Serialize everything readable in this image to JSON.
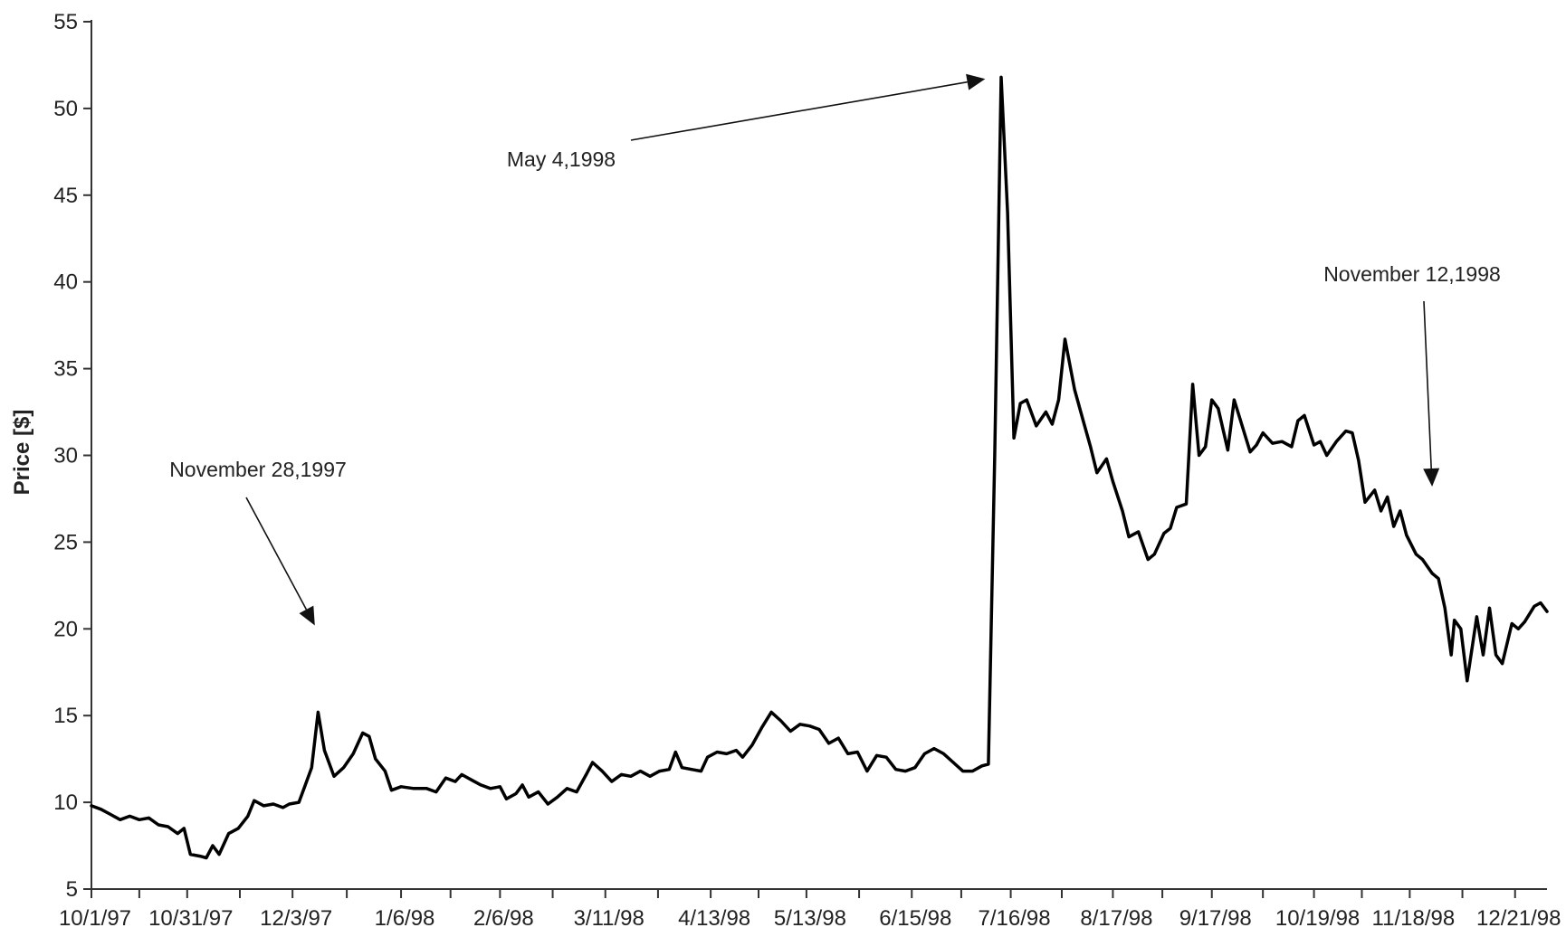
{
  "chart_data": {
    "type": "line",
    "ylabel": "Price [$]",
    "xlabel": "",
    "ylim": [
      5,
      55
    ],
    "yticks": [
      5,
      10,
      15,
      20,
      25,
      30,
      35,
      40,
      45,
      50,
      55
    ],
    "xlim": [
      "1997-10-01",
      "1998-12-31"
    ],
    "xtick_labels": [
      {
        "label": "10/1/97",
        "date": "1997-10-01"
      },
      {
        "label": "10/31/97",
        "date": "1997-10-31"
      },
      {
        "label": "12/3/97",
        "date": "1997-12-03"
      },
      {
        "label": "1/6/98",
        "date": "1998-01-06"
      },
      {
        "label": "2/6/98",
        "date": "1998-02-06"
      },
      {
        "label": "3/11/98",
        "date": "1998-03-11"
      },
      {
        "label": "4/13/98",
        "date": "1998-04-13"
      },
      {
        "label": "5/13/98",
        "date": "1998-05-13"
      },
      {
        "label": "6/15/98",
        "date": "1998-06-15"
      },
      {
        "label": "7/16/98",
        "date": "1998-07-16"
      },
      {
        "label": "8/17/98",
        "date": "1998-08-17"
      },
      {
        "label": "9/17/98",
        "date": "1998-09-17"
      },
      {
        "label": "10/19/98",
        "date": "1998-10-19"
      },
      {
        "label": "11/18/98",
        "date": "1998-11-18"
      },
      {
        "label": "12/21/98",
        "date": "1998-12-21"
      }
    ],
    "grid": false,
    "line_color": "#000000",
    "series": [
      {
        "points": [
          [
            "1997-10-01",
            9.8
          ],
          [
            "1997-10-04",
            9.6
          ],
          [
            "1997-10-07",
            9.3
          ],
          [
            "1997-10-10",
            9.0
          ],
          [
            "1997-10-13",
            9.2
          ],
          [
            "1997-10-16",
            9.0
          ],
          [
            "1997-10-19",
            9.1
          ],
          [
            "1997-10-22",
            8.7
          ],
          [
            "1997-10-25",
            8.6
          ],
          [
            "1997-10-28",
            8.2
          ],
          [
            "1997-10-30",
            8.5
          ],
          [
            "1997-11-01",
            7.0
          ],
          [
            "1997-11-04",
            6.9
          ],
          [
            "1997-11-06",
            6.8
          ],
          [
            "1997-11-08",
            7.5
          ],
          [
            "1997-11-10",
            7.0
          ],
          [
            "1997-11-13",
            8.2
          ],
          [
            "1997-11-16",
            8.5
          ],
          [
            "1997-11-19",
            9.2
          ],
          [
            "1997-11-21",
            10.1
          ],
          [
            "1997-11-24",
            9.8
          ],
          [
            "1997-11-27",
            9.9
          ],
          [
            "1997-11-30",
            9.7
          ],
          [
            "1997-12-02",
            9.9
          ],
          [
            "1997-12-05",
            10.0
          ],
          [
            "1997-12-07",
            11.0
          ],
          [
            "1997-12-09",
            12.0
          ],
          [
            "1997-12-11",
            15.2
          ],
          [
            "1997-12-13",
            13.0
          ],
          [
            "1997-12-16",
            11.5
          ],
          [
            "1997-12-19",
            12.0
          ],
          [
            "1997-12-22",
            12.8
          ],
          [
            "1997-12-25",
            14.0
          ],
          [
            "1997-12-27",
            13.8
          ],
          [
            "1997-12-29",
            12.5
          ],
          [
            "1998-01-01",
            11.8
          ],
          [
            "1998-01-03",
            10.7
          ],
          [
            "1998-01-06",
            10.9
          ],
          [
            "1998-01-10",
            10.8
          ],
          [
            "1998-01-14",
            10.8
          ],
          [
            "1998-01-17",
            10.6
          ],
          [
            "1998-01-20",
            11.4
          ],
          [
            "1998-01-23",
            11.2
          ],
          [
            "1998-01-25",
            11.6
          ],
          [
            "1998-01-28",
            11.3
          ],
          [
            "1998-01-31",
            11.0
          ],
          [
            "1998-02-03",
            10.8
          ],
          [
            "1998-02-06",
            10.9
          ],
          [
            "1998-02-08",
            10.2
          ],
          [
            "1998-02-11",
            10.5
          ],
          [
            "1998-02-13",
            11.0
          ],
          [
            "1998-02-15",
            10.3
          ],
          [
            "1998-02-18",
            10.6
          ],
          [
            "1998-02-21",
            9.9
          ],
          [
            "1998-02-24",
            10.3
          ],
          [
            "1998-02-27",
            10.8
          ],
          [
            "1998-03-02",
            10.6
          ],
          [
            "1998-03-05",
            11.6
          ],
          [
            "1998-03-07",
            12.3
          ],
          [
            "1998-03-10",
            11.8
          ],
          [
            "1998-03-13",
            11.2
          ],
          [
            "1998-03-16",
            11.6
          ],
          [
            "1998-03-19",
            11.5
          ],
          [
            "1998-03-22",
            11.8
          ],
          [
            "1998-03-25",
            11.5
          ],
          [
            "1998-03-28",
            11.8
          ],
          [
            "1998-03-31",
            11.9
          ],
          [
            "1998-04-02",
            12.9
          ],
          [
            "1998-04-04",
            12.0
          ],
          [
            "1998-04-07",
            11.9
          ],
          [
            "1998-04-10",
            11.8
          ],
          [
            "1998-04-12",
            12.6
          ],
          [
            "1998-04-15",
            12.9
          ],
          [
            "1998-04-18",
            12.8
          ],
          [
            "1998-04-21",
            13.0
          ],
          [
            "1998-04-23",
            12.6
          ],
          [
            "1998-04-26",
            13.3
          ],
          [
            "1998-04-29",
            14.3
          ],
          [
            "1998-05-02",
            15.2
          ],
          [
            "1998-05-05",
            14.7
          ],
          [
            "1998-05-08",
            14.1
          ],
          [
            "1998-05-11",
            14.5
          ],
          [
            "1998-05-14",
            14.4
          ],
          [
            "1998-05-17",
            14.2
          ],
          [
            "1998-05-20",
            13.4
          ],
          [
            "1998-05-23",
            13.7
          ],
          [
            "1998-05-26",
            12.8
          ],
          [
            "1998-05-29",
            12.9
          ],
          [
            "1998-06-01",
            11.8
          ],
          [
            "1998-06-04",
            12.7
          ],
          [
            "1998-06-07",
            12.6
          ],
          [
            "1998-06-10",
            11.9
          ],
          [
            "1998-06-13",
            11.8
          ],
          [
            "1998-06-16",
            12.0
          ],
          [
            "1998-06-19",
            12.8
          ],
          [
            "1998-06-22",
            13.1
          ],
          [
            "1998-06-25",
            12.8
          ],
          [
            "1998-06-28",
            12.3
          ],
          [
            "1998-07-01",
            11.8
          ],
          [
            "1998-07-04",
            11.8
          ],
          [
            "1998-07-07",
            12.1
          ],
          [
            "1998-07-09",
            12.2
          ],
          [
            "1998-07-11",
            30.0
          ],
          [
            "1998-07-13",
            51.8
          ],
          [
            "1998-07-15",
            44.0
          ],
          [
            "1998-07-17",
            31.0
          ],
          [
            "1998-07-19",
            33.0
          ],
          [
            "1998-07-21",
            33.2
          ],
          [
            "1998-07-24",
            31.7
          ],
          [
            "1998-07-27",
            32.5
          ],
          [
            "1998-07-29",
            31.8
          ],
          [
            "1998-07-31",
            33.2
          ],
          [
            "1998-08-02",
            36.7
          ],
          [
            "1998-08-05",
            33.8
          ],
          [
            "1998-08-08",
            31.8
          ],
          [
            "1998-08-10",
            30.5
          ],
          [
            "1998-08-12",
            29.0
          ],
          [
            "1998-08-15",
            29.8
          ],
          [
            "1998-08-17",
            28.5
          ],
          [
            "1998-08-20",
            26.8
          ],
          [
            "1998-08-22",
            25.3
          ],
          [
            "1998-08-25",
            25.6
          ],
          [
            "1998-08-28",
            24.0
          ],
          [
            "1998-08-30",
            24.3
          ],
          [
            "1998-09-02",
            25.5
          ],
          [
            "1998-09-04",
            25.8
          ],
          [
            "1998-09-06",
            27.0
          ],
          [
            "1998-09-09",
            27.2
          ],
          [
            "1998-09-11",
            34.1
          ],
          [
            "1998-09-13",
            30.0
          ],
          [
            "1998-09-15",
            30.5
          ],
          [
            "1998-09-17",
            33.2
          ],
          [
            "1998-09-19",
            32.7
          ],
          [
            "1998-09-22",
            30.3
          ],
          [
            "1998-09-24",
            33.2
          ],
          [
            "1998-09-26",
            32.0
          ],
          [
            "1998-09-29",
            30.2
          ],
          [
            "1998-10-01",
            30.6
          ],
          [
            "1998-10-03",
            31.3
          ],
          [
            "1998-10-06",
            30.7
          ],
          [
            "1998-10-09",
            30.8
          ],
          [
            "1998-10-12",
            30.5
          ],
          [
            "1998-10-14",
            32.0
          ],
          [
            "1998-10-16",
            32.3
          ],
          [
            "1998-10-19",
            30.6
          ],
          [
            "1998-10-21",
            30.8
          ],
          [
            "1998-10-23",
            30.0
          ],
          [
            "1998-10-26",
            30.8
          ],
          [
            "1998-10-29",
            31.4
          ],
          [
            "1998-10-31",
            31.3
          ],
          [
            "1998-11-02",
            29.7
          ],
          [
            "1998-11-04",
            27.3
          ],
          [
            "1998-11-07",
            28.0
          ],
          [
            "1998-11-09",
            26.8
          ],
          [
            "1998-11-11",
            27.6
          ],
          [
            "1998-11-13",
            25.9
          ],
          [
            "1998-11-15",
            26.8
          ],
          [
            "1998-11-17",
            25.4
          ],
          [
            "1998-11-20",
            24.3
          ],
          [
            "1998-11-22",
            24.0
          ],
          [
            "1998-11-25",
            23.2
          ],
          [
            "1998-11-27",
            22.9
          ],
          [
            "1998-11-29",
            21.2
          ],
          [
            "1998-12-01",
            18.5
          ],
          [
            "1998-12-02",
            20.5
          ],
          [
            "1998-12-04",
            20.0
          ],
          [
            "1998-12-06",
            17.0
          ],
          [
            "1998-12-09",
            20.7
          ],
          [
            "1998-12-11",
            18.5
          ],
          [
            "1998-12-13",
            21.2
          ],
          [
            "1998-12-15",
            18.5
          ],
          [
            "1998-12-17",
            18.0
          ],
          [
            "1998-12-20",
            20.3
          ],
          [
            "1998-12-22",
            20.0
          ],
          [
            "1998-12-24",
            20.4
          ],
          [
            "1998-12-27",
            21.3
          ],
          [
            "1998-12-29",
            21.5
          ],
          [
            "1998-12-31",
            21.0
          ]
        ]
      }
    ],
    "annotations": [
      {
        "text": "November 28,1997",
        "target": [
          "1997-12-10",
          20.2
        ]
      },
      {
        "text": "May 4,1998",
        "target": [
          "1998-07-08",
          51.7
        ]
      },
      {
        "text": "November 12,1998",
        "target": [
          "1998-11-25",
          28.2
        ]
      }
    ]
  }
}
